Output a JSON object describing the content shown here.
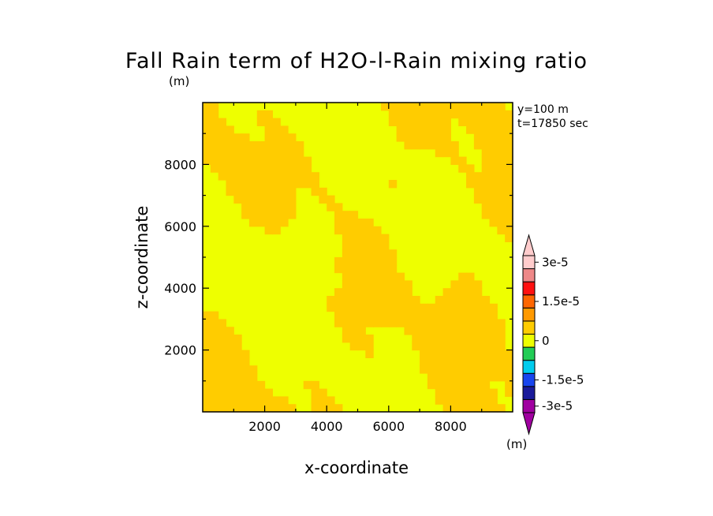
{
  "chart_data": {
    "type": "heatmap",
    "title": "Fall Rain term of H2O-l-Rain mixing ratio",
    "title_unit": "(m)",
    "xlabel": "x-coordinate",
    "ylabel": "z-coordinate",
    "xlim": [
      0,
      10000
    ],
    "ylim": [
      0,
      10000
    ],
    "x_ticks": [
      {
        "value": 2000,
        "label": "2000"
      },
      {
        "value": 4000,
        "label": "4000"
      },
      {
        "value": 6000,
        "label": "6000"
      },
      {
        "value": 8000,
        "label": "8000"
      }
    ],
    "y_ticks": [
      {
        "value": 2000,
        "label": "2000"
      },
      {
        "value": 4000,
        "label": "4000"
      },
      {
        "value": 6000,
        "label": "6000"
      },
      {
        "value": 8000,
        "label": "8000"
      }
    ],
    "annotations": [
      "y=100 m",
      "t=17850 sec"
    ],
    "field_levels": {
      "low": {
        "range": "0 to 0.75e-5",
        "color": "#ffcc00"
      },
      "high": {
        "range": "-0.75e-5 to 0",
        "color": "#eeff00"
      }
    },
    "colorbar": {
      "unit": "(m)",
      "levels": [
        {
          "color": "#a000a0"
        },
        {
          "color": "#1a1a9a"
        },
        {
          "color": "#1845ee"
        },
        {
          "color": "#00ccee"
        },
        {
          "color": "#22cc55"
        },
        {
          "color": "#eeff00"
        },
        {
          "color": "#ffcc00"
        },
        {
          "color": "#ff9900"
        },
        {
          "color": "#ff6600"
        },
        {
          "color": "#ff1111"
        },
        {
          "color": "#ee8888"
        },
        {
          "color": "#ffcccc"
        }
      ],
      "labels": [
        {
          "level_index": 0,
          "label": "-3e-5"
        },
        {
          "level_index": 2,
          "label": "-1.5e-5"
        },
        {
          "level_index": 5,
          "label": "0"
        },
        {
          "level_index": 8,
          "label": "1.5e-5"
        },
        {
          "level_index": 11,
          "label": "3e-5"
        }
      ]
    }
  }
}
